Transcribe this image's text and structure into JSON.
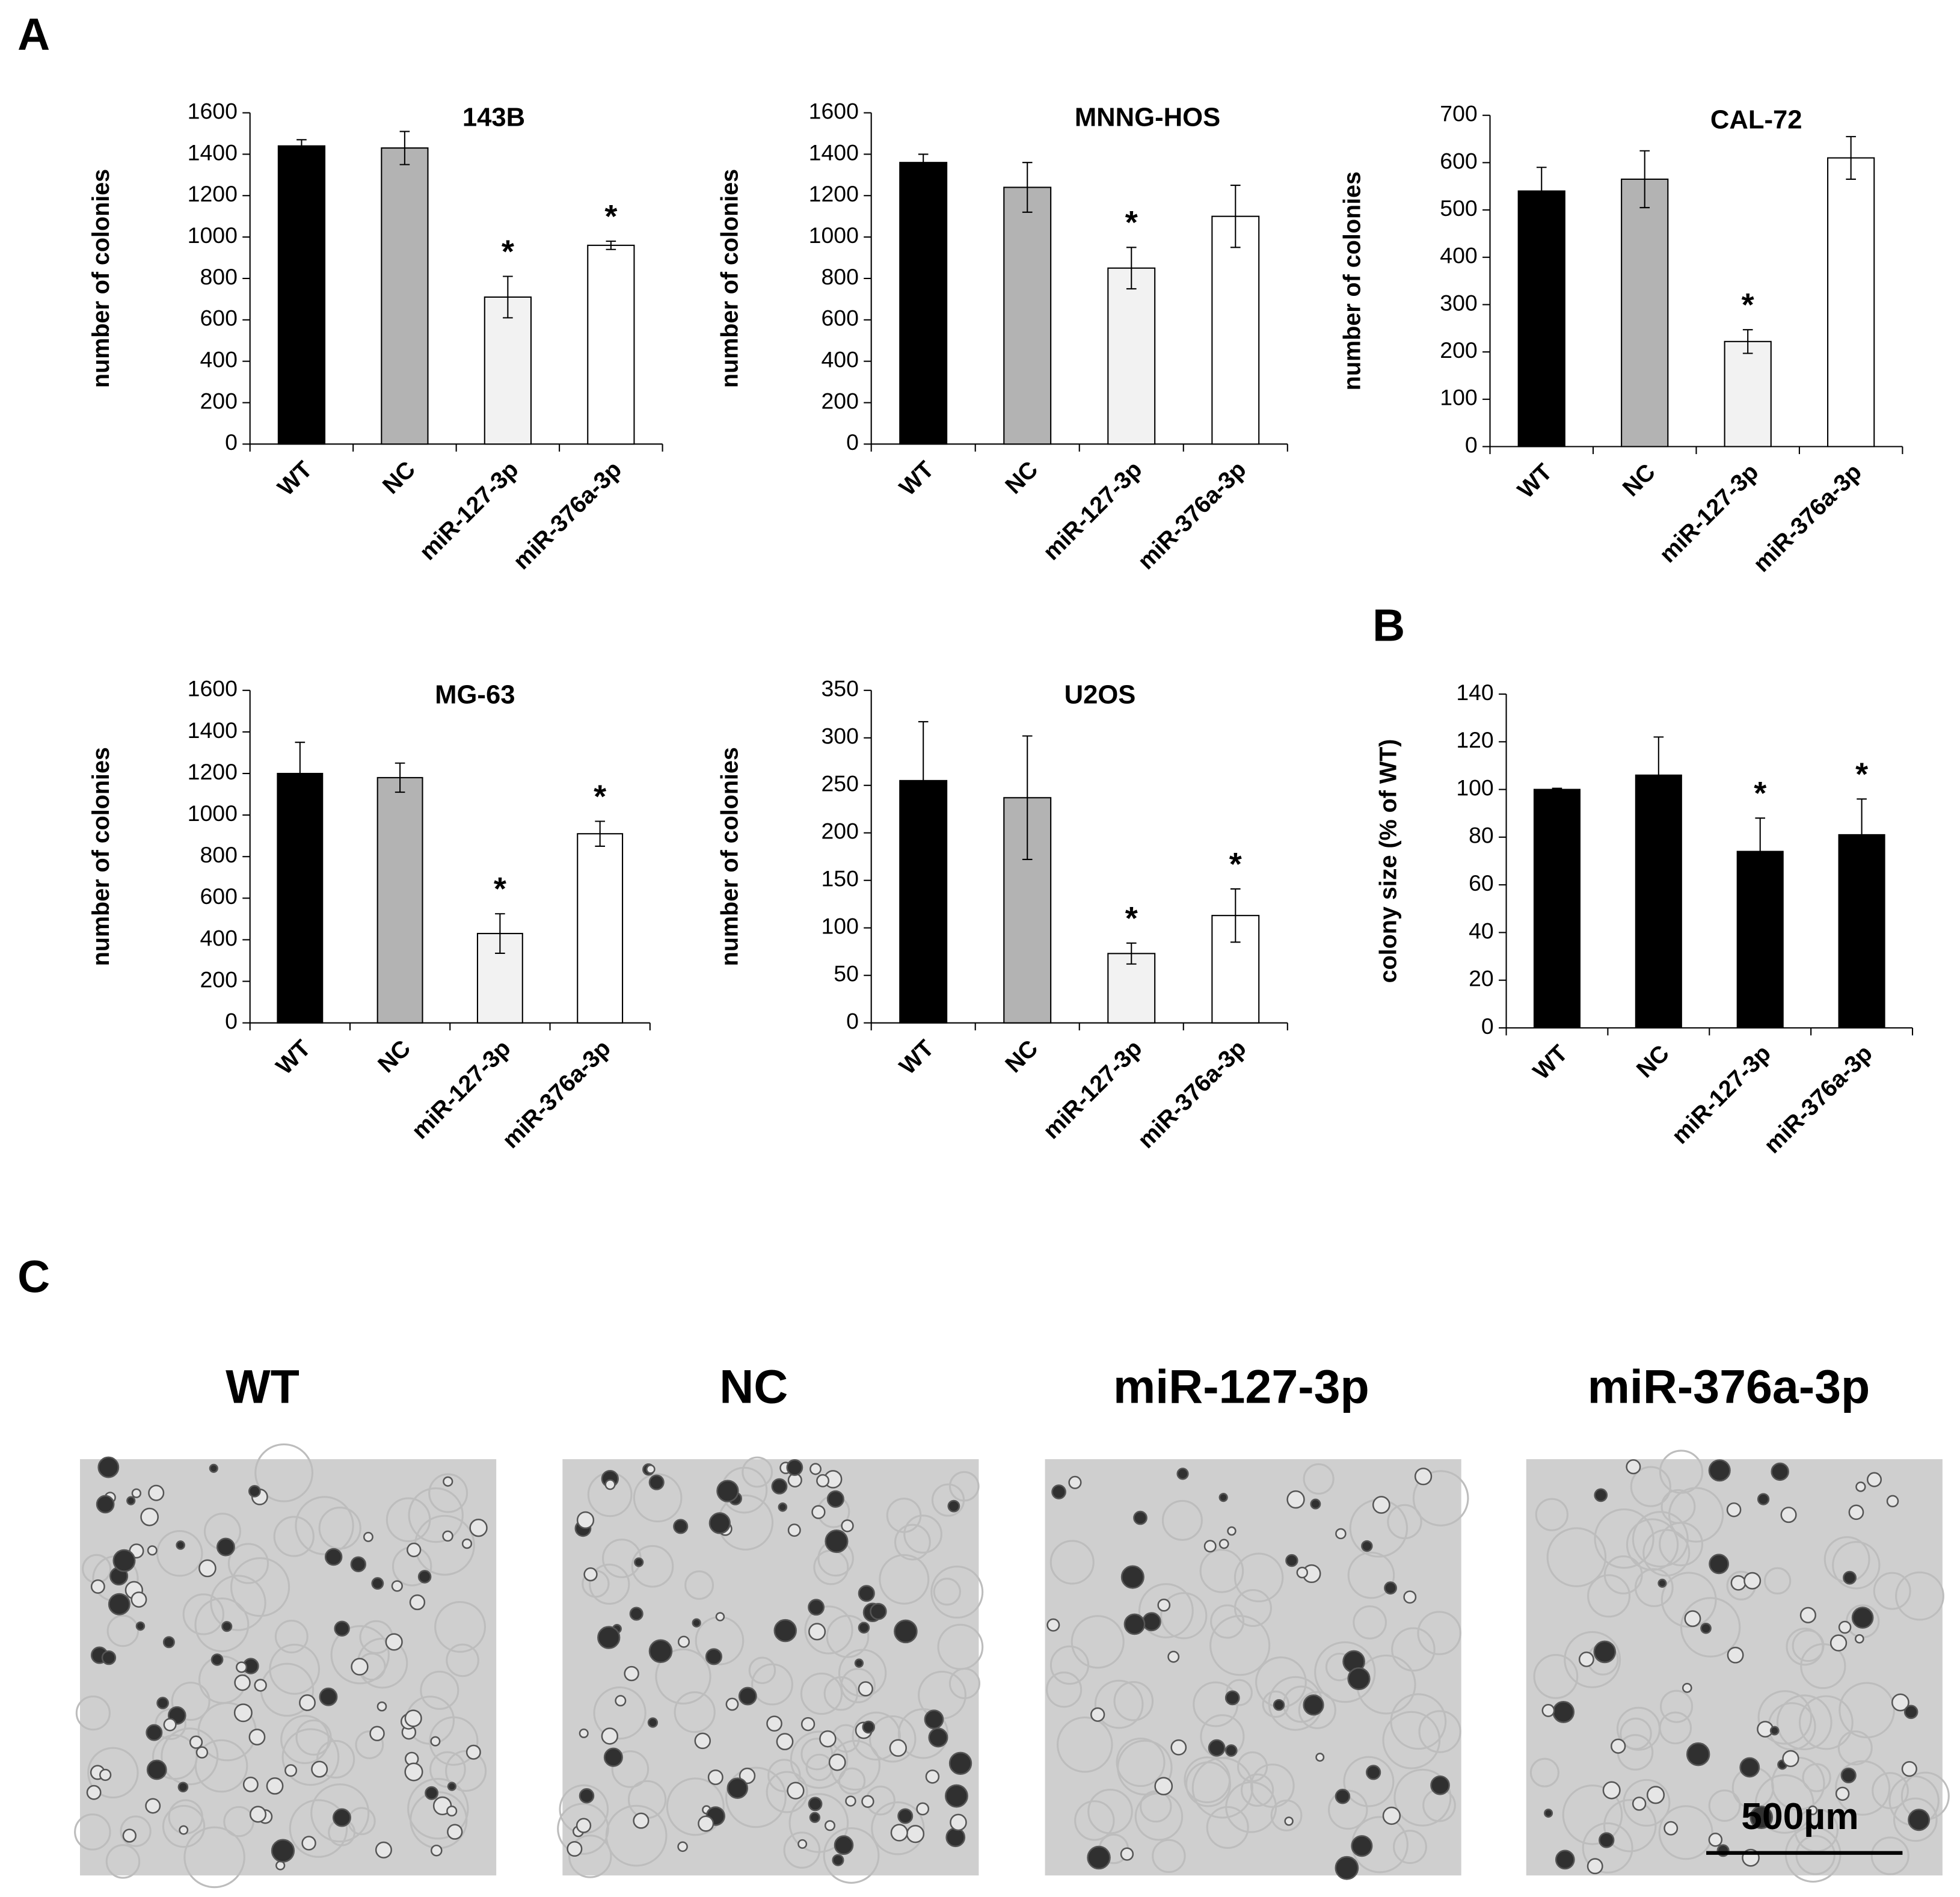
{
  "chart_data": [
    {
      "type": "bar",
      "title": "143B",
      "y_label": "number of colonies",
      "categories": [
        "WT",
        "NC",
        "miR-127-3p",
        "miR-376a-3p"
      ],
      "values": [
        1440,
        1430,
        710,
        960
      ],
      "errors": [
        30,
        80,
        100,
        20
      ],
      "markers": [
        null,
        null,
        "*",
        "*"
      ],
      "colors": [
        "#000000",
        "#b3b3b3",
        "#f2f2f2",
        "#ffffff"
      ],
      "ylim": [
        0,
        1600
      ],
      "yticks": [
        0,
        200,
        400,
        600,
        800,
        1000,
        1200,
        1400,
        1600
      ]
    },
    {
      "type": "bar",
      "title": "MNNG-HOS",
      "y_label": "number of colonies",
      "categories": [
        "WT",
        "NC",
        "miR-127-3p",
        "miR-376a-3p"
      ],
      "values": [
        1360,
        1240,
        850,
        1100
      ],
      "errors": [
        40,
        120,
        100,
        150
      ],
      "markers": [
        null,
        null,
        "*",
        null
      ],
      "colors": [
        "#000000",
        "#b3b3b3",
        "#f2f2f2",
        "#ffffff"
      ],
      "ylim": [
        0,
        1600
      ],
      "yticks": [
        0,
        200,
        400,
        600,
        800,
        1000,
        1200,
        1400,
        1600
      ]
    },
    {
      "type": "bar",
      "title": "CAL-72",
      "y_label": "number of colonies",
      "categories": [
        "WT",
        "NC",
        "miR-127-3p",
        "miR-376a-3p"
      ],
      "values": [
        540,
        565,
        222,
        610
      ],
      "errors": [
        50,
        60,
        25,
        45
      ],
      "markers": [
        null,
        null,
        "*",
        null
      ],
      "colors": [
        "#000000",
        "#b3b3b3",
        "#f2f2f2",
        "#ffffff"
      ],
      "ylim": [
        0,
        700
      ],
      "yticks": [
        0,
        100,
        200,
        300,
        400,
        500,
        600,
        700
      ]
    },
    {
      "type": "bar",
      "title": "MG-63",
      "y_label": "number of colonies",
      "categories": [
        "WT",
        "NC",
        "miR-127-3p",
        "miR-376a-3p"
      ],
      "values": [
        1200,
        1180,
        430,
        910
      ],
      "errors": [
        150,
        70,
        95,
        60
      ],
      "markers": [
        null,
        null,
        "*",
        "*"
      ],
      "colors": [
        "#000000",
        "#b3b3b3",
        "#f2f2f2",
        "#ffffff"
      ],
      "ylim": [
        0,
        1600
      ],
      "yticks": [
        0,
        200,
        400,
        600,
        800,
        1000,
        1200,
        1400,
        1600
      ]
    },
    {
      "type": "bar",
      "title": "U2OS",
      "y_label": "number of colonies",
      "categories": [
        "WT",
        "NC",
        "miR-127-3p",
        "miR-376a-3p"
      ],
      "values": [
        255,
        237,
        73,
        113
      ],
      "errors": [
        62,
        65,
        11,
        28
      ],
      "markers": [
        null,
        null,
        "*",
        "*"
      ],
      "colors": [
        "#000000",
        "#b3b3b3",
        "#f2f2f2",
        "#ffffff"
      ],
      "ylim": [
        0,
        350
      ],
      "yticks": [
        0,
        50,
        100,
        150,
        200,
        250,
        300,
        350
      ]
    },
    {
      "type": "bar",
      "y_label": "colony size (% of WT)",
      "categories": [
        "WT",
        "NC",
        "miR-127-3p",
        "miR-376a-3p"
      ],
      "values": [
        100,
        106,
        74,
        81
      ],
      "errors": [
        0.5,
        16,
        14,
        15
      ],
      "markers": [
        null,
        null,
        "*",
        "*"
      ],
      "colors": [
        "#000000",
        "#000000",
        "#000000",
        "#000000"
      ],
      "ylim": [
        0,
        140
      ],
      "yticks": [
        0,
        20,
        40,
        60,
        80,
        100,
        120,
        140
      ]
    }
  ],
  "figure": {
    "panel_labels": [
      "A",
      "B",
      "C"
    ],
    "image_captions": [
      "WT",
      "NC",
      "miR-127-3p",
      "miR-376a-3p"
    ],
    "scale_bar": "500µm"
  }
}
